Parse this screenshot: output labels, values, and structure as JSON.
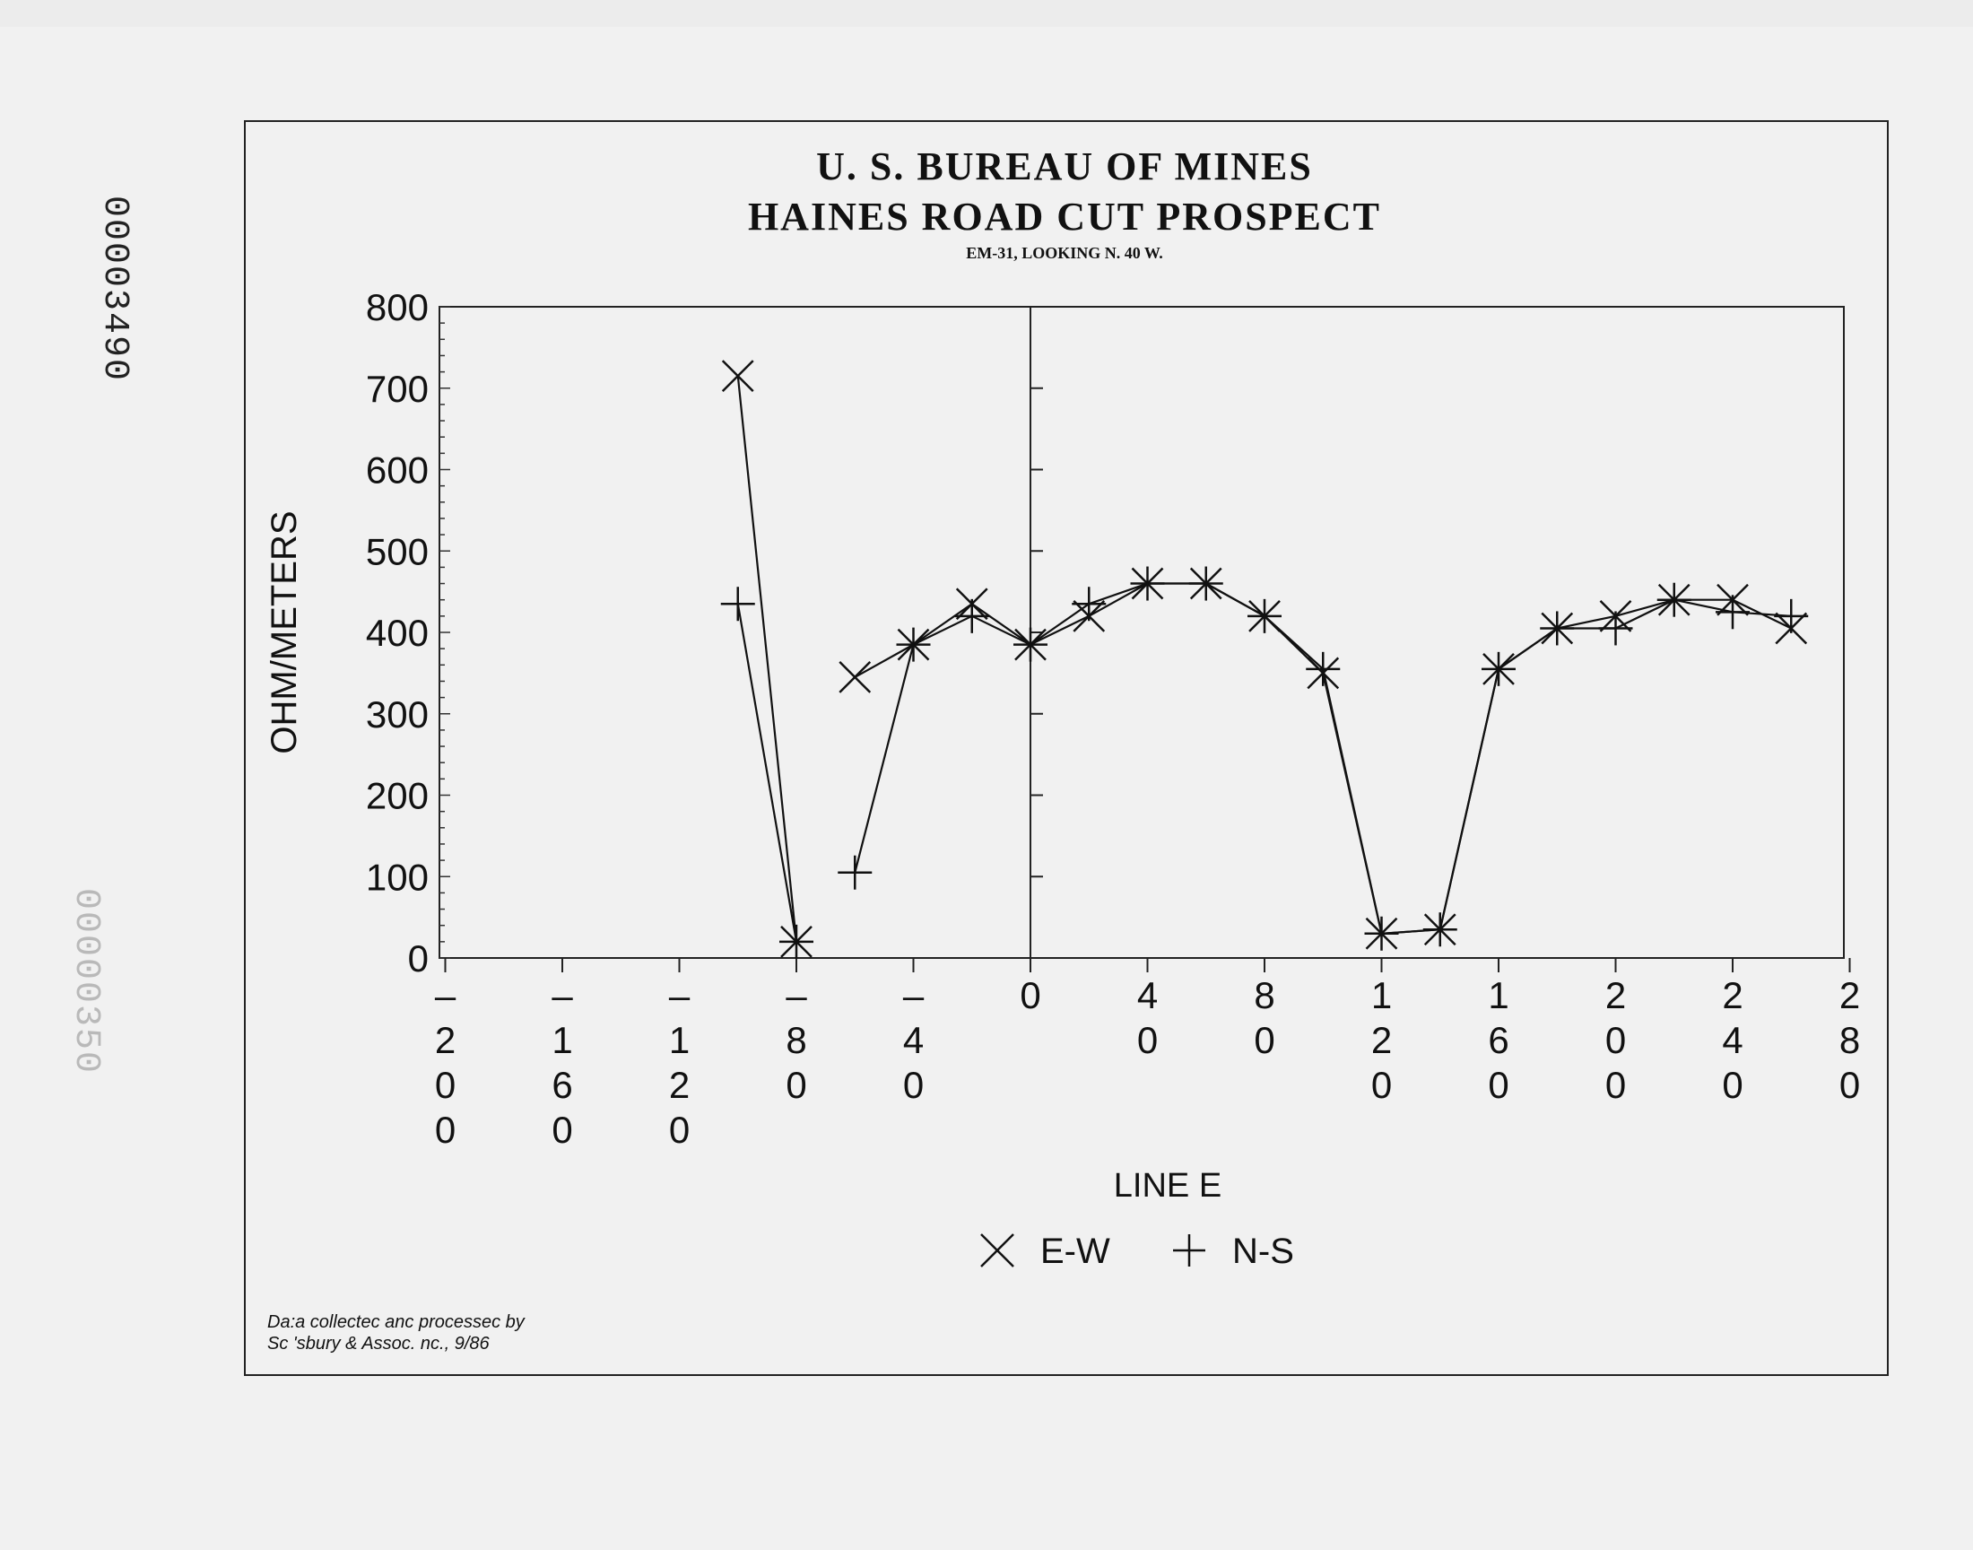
{
  "stamps": {
    "top": "00003490",
    "faint": "00000350"
  },
  "credit": {
    "line1": "Da:a collectec anc processec by",
    "line2": "Sc 'sbury & Assoc. nc., 9/86"
  },
  "chart_data": {
    "type": "line",
    "title": "U. S. BUREAU OF MINES",
    "subtitle": "HAINES ROAD CUT PROSPECT",
    "caption": "EM-31, LOOKING N. 40 W.",
    "xlabel": "LINE E",
    "ylabel": "OHM/METERS",
    "xlim": [
      -200,
      280
    ],
    "ylim": [
      0,
      800
    ],
    "x_ticks": [
      {
        "value": -200,
        "chars": [
          "–",
          "2",
          "0",
          "0"
        ]
      },
      {
        "value": -160,
        "chars": [
          "–",
          "1",
          "6",
          "0"
        ]
      },
      {
        "value": -120,
        "chars": [
          "–",
          "1",
          "2",
          "0"
        ]
      },
      {
        "value": -80,
        "chars": [
          "–",
          "8",
          "0"
        ]
      },
      {
        "value": -40,
        "chars": [
          "–",
          "4",
          "0"
        ]
      },
      {
        "value": 0,
        "chars": [
          "0"
        ]
      },
      {
        "value": 40,
        "chars": [
          "4",
          "0"
        ]
      },
      {
        "value": 80,
        "chars": [
          "8",
          "0"
        ]
      },
      {
        "value": 120,
        "chars": [
          "1",
          "2",
          "0"
        ]
      },
      {
        "value": 160,
        "chars": [
          "1",
          "6",
          "0"
        ]
      },
      {
        "value": 200,
        "chars": [
          "2",
          "0",
          "0"
        ]
      },
      {
        "value": 240,
        "chars": [
          "2",
          "4",
          "0"
        ]
      },
      {
        "value": 280,
        "chars": [
          "2",
          "8",
          "0"
        ]
      }
    ],
    "y_ticks": [
      "0",
      "100",
      "200",
      "300",
      "400",
      "500",
      "600",
      "700",
      "800"
    ],
    "legend_position": "bottom-center",
    "series": [
      {
        "name": "E-W",
        "marker": "x",
        "segments": [
          [
            [
              -100,
              715
            ],
            [
              -80,
              20
            ]
          ],
          [
            [
              -60,
              345
            ],
            [
              -40,
              385
            ],
            [
              -20,
              435
            ],
            [
              0,
              385
            ],
            [
              20,
              420
            ],
            [
              40,
              460
            ],
            [
              60,
              460
            ],
            [
              80,
              420
            ],
            [
              100,
              350
            ],
            [
              120,
              30
            ],
            [
              140,
              35
            ],
            [
              160,
              355
            ],
            [
              180,
              405
            ],
            [
              200,
              420
            ],
            [
              220,
              440
            ],
            [
              240,
              440
            ],
            [
              260,
              405
            ]
          ]
        ]
      },
      {
        "name": "N-S",
        "marker": "+",
        "segments": [
          [
            [
              -100,
              435
            ],
            [
              -80,
              20
            ]
          ],
          [
            [
              -60,
              105
            ],
            [
              -40,
              385
            ],
            [
              -20,
              420
            ],
            [
              0,
              385
            ],
            [
              20,
              435
            ],
            [
              40,
              460
            ],
            [
              60,
              460
            ],
            [
              80,
              420
            ],
            [
              100,
              355
            ],
            [
              120,
              30
            ],
            [
              140,
              35
            ],
            [
              160,
              355
            ],
            [
              180,
              405
            ],
            [
              200,
              405
            ],
            [
              220,
              440
            ],
            [
              240,
              425
            ],
            [
              260,
              420
            ]
          ]
        ]
      }
    ]
  }
}
